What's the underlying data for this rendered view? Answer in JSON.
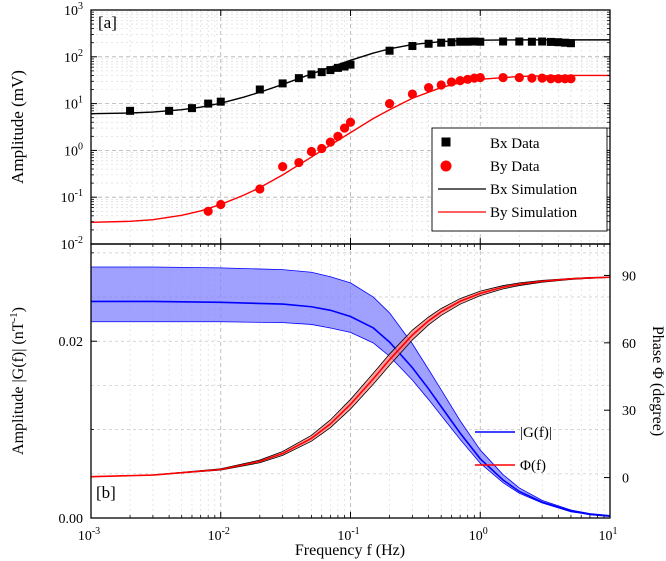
{
  "chart_data": [
    {
      "type": "scatter",
      "panel_label": "[a]",
      "xscale": "log",
      "yscale": "log",
      "xlim": [
        0.001,
        10
      ],
      "ylim": [
        0.01,
        1000
      ],
      "ylabel": "Amplitude (mV)",
      "y_ticks": [
        {
          "base": "10",
          "exp": "-2"
        },
        {
          "base": "10",
          "exp": "-1"
        },
        {
          "base": "10",
          "exp": "0"
        },
        {
          "base": "10",
          "exp": "1"
        },
        {
          "base": "10",
          "exp": "2"
        },
        {
          "base": "10",
          "exp": "3"
        }
      ],
      "grid": true,
      "legend_position": "lower-right",
      "series": [
        {
          "name": "Bx Data",
          "kind": "points",
          "marker": "square",
          "color": "#000000",
          "x": [
            0.002,
            0.004,
            0.006,
            0.008,
            0.01,
            0.02,
            0.03,
            0.04,
            0.05,
            0.06,
            0.07,
            0.08,
            0.09,
            0.1,
            0.2,
            0.3,
            0.4,
            0.5,
            0.6,
            0.7,
            0.8,
            0.9,
            1.0,
            1.5,
            2.0,
            2.5,
            3.0,
            3.5,
            4.0,
            4.5,
            5.0
          ],
          "y": [
            7,
            7,
            8,
            10,
            11,
            20,
            27,
            35,
            42,
            47,
            52,
            58,
            62,
            68,
            135,
            170,
            190,
            200,
            205,
            210,
            210,
            212,
            210,
            212,
            212,
            210,
            212,
            208,
            205,
            200,
            195
          ]
        },
        {
          "name": "By Data",
          "kind": "points",
          "marker": "circle",
          "color": "#ff0000",
          "x": [
            0.008,
            0.01,
            0.02,
            0.03,
            0.04,
            0.05,
            0.06,
            0.07,
            0.08,
            0.09,
            0.1,
            0.2,
            0.3,
            0.4,
            0.5,
            0.6,
            0.7,
            0.8,
            0.9,
            1.0,
            1.5,
            2.0,
            2.5,
            3.0,
            3.5,
            4.0,
            4.5,
            5.0
          ],
          "y": [
            0.05,
            0.07,
            0.15,
            0.45,
            0.55,
            0.95,
            1.1,
            1.5,
            2.0,
            3.0,
            4.0,
            10,
            16,
            22,
            25,
            29,
            31,
            33,
            35,
            36,
            36,
            36,
            35,
            35,
            34,
            34,
            34,
            34
          ]
        },
        {
          "name": "Bx Simulation",
          "kind": "line",
          "color": "#000000",
          "x": [
            0.001,
            0.002,
            0.003,
            0.005,
            0.007,
            0.01,
            0.015,
            0.02,
            0.03,
            0.05,
            0.07,
            0.1,
            0.15,
            0.2,
            0.3,
            0.5,
            0.7,
            1,
            2,
            3,
            5,
            10
          ],
          "y": [
            6.1,
            6.3,
            6.6,
            7.4,
            8.4,
            10.2,
            13.7,
            17.5,
            25.7,
            43,
            60,
            84,
            120,
            148,
            183,
            212,
            222,
            227,
            230,
            230,
            230,
            230
          ]
        },
        {
          "name": "By Simulation",
          "kind": "line",
          "color": "#ff0000",
          "x": [
            0.001,
            0.002,
            0.003,
            0.005,
            0.007,
            0.01,
            0.015,
            0.02,
            0.03,
            0.05,
            0.07,
            0.1,
            0.15,
            0.2,
            0.3,
            0.5,
            0.7,
            1,
            2,
            3,
            5,
            10
          ],
          "y": [
            0.029,
            0.0305,
            0.033,
            0.041,
            0.051,
            0.07,
            0.11,
            0.16,
            0.3,
            0.72,
            1.3,
            2.4,
            4.8,
            7.4,
            13,
            22,
            28,
            33,
            38,
            39,
            40,
            40
          ]
        }
      ]
    },
    {
      "type": "line",
      "panel_label": "[b]",
      "xscale": "log",
      "xlim": [
        0.001,
        10
      ],
      "xlabel": "Frequency f (Hz)",
      "x_ticks": [
        {
          "base": "10",
          "exp": "-3"
        },
        {
          "base": "10",
          "exp": "-2"
        },
        {
          "base": "10",
          "exp": "-1"
        },
        {
          "base": "10",
          "exp": "0"
        },
        {
          "base": "10",
          "exp": "1"
        }
      ],
      "ylabel": "Amplitude |G(f)| (nT",
      "ylabel_sup": "-1",
      "ylabel_tail": ")",
      "ylim": [
        0,
        0.031
      ],
      "y_ticks": [
        "0.00",
        "0.02"
      ],
      "y2label": "Phase Φ (degree)",
      "y2lim": [
        -18,
        104
      ],
      "y2_ticks": [
        "0",
        "30",
        "60",
        "90"
      ],
      "grid": true,
      "legend_position": "center-right",
      "series": [
        {
          "name": "|G(f)|",
          "axis": "left",
          "color": "#0000ff",
          "band_color": "#8080ff",
          "x": [
            0.001,
            0.003,
            0.01,
            0.03,
            0.05,
            0.07,
            0.1,
            0.15,
            0.2,
            0.3,
            0.4,
            0.5,
            0.7,
            1,
            1.5,
            2,
            3,
            5,
            7,
            10
          ],
          "y": [
            0.0245,
            0.0245,
            0.0244,
            0.0242,
            0.0239,
            0.0235,
            0.0228,
            0.0215,
            0.0199,
            0.017,
            0.0146,
            0.0126,
            0.0096,
            0.0067,
            0.0043,
            0.003,
            0.0018,
            0.0008,
            0.0004,
            0.0002
          ],
          "y_low": [
            0.0222,
            0.0222,
            0.0222,
            0.0221,
            0.0219,
            0.0215,
            0.021,
            0.0198,
            0.0183,
            0.0156,
            0.0134,
            0.0116,
            0.0089,
            0.0062,
            0.004,
            0.0028,
            0.0017,
            0.0007,
            0.0004,
            0.0002
          ],
          "y_high": [
            0.0284,
            0.0284,
            0.0283,
            0.0281,
            0.0278,
            0.0273,
            0.0266,
            0.025,
            0.0232,
            0.0197,
            0.0168,
            0.0145,
            0.011,
            0.0077,
            0.0049,
            0.0034,
            0.002,
            0.0009,
            0.0005,
            0.0003
          ]
        },
        {
          "name": "Φ(f)",
          "axis": "right",
          "color": "#ff0000",
          "band_color": "#ff8080",
          "x": [
            0.001,
            0.003,
            0.01,
            0.02,
            0.03,
            0.05,
            0.07,
            0.1,
            0.15,
            0.2,
            0.3,
            0.4,
            0.5,
            0.7,
            1,
            1.5,
            2,
            3,
            5,
            7,
            10
          ],
          "y": [
            0.4,
            1.1,
            3.6,
            7.2,
            10.7,
            17.5,
            23.9,
            32.6,
            44,
            52.5,
            63.5,
            69.8,
            73.8,
            78.5,
            82,
            84.8,
            86.1,
            87.4,
            88.5,
            88.9,
            89.2
          ],
          "y_low": [
            0.4,
            1.1,
            3.3,
            6.6,
            9.9,
            16.2,
            22.2,
            30.5,
            41.6,
            50,
            61.3,
            68,
            72.2,
            77.2,
            81,
            84,
            85.5,
            87,
            88.2,
            88.7,
            89.1
          ],
          "y_high": [
            0.4,
            1.2,
            3.9,
            7.8,
            11.6,
            18.8,
            25.7,
            34.8,
            46.5,
            55,
            65.7,
            71.5,
            75.3,
            79.7,
            83,
            85.5,
            86.7,
            87.8,
            88.7,
            89.1,
            89.3
          ]
        }
      ]
    }
  ]
}
